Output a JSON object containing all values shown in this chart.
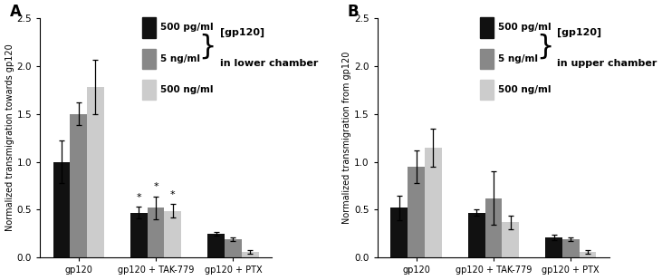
{
  "panel_A": {
    "title": "A",
    "ylabel": "Normalized transmigration towards gp120",
    "groups": [
      "gp120",
      "gp120 + TAK-779",
      "gp120 + PTX"
    ],
    "bar_values": [
      [
        1.0,
        1.5,
        1.78
      ],
      [
        0.47,
        0.52,
        0.49
      ],
      [
        0.25,
        0.19,
        0.06
      ]
    ],
    "bar_errors": [
      [
        0.22,
        0.12,
        0.28
      ],
      [
        0.06,
        0.12,
        0.07
      ],
      [
        0.02,
        0.02,
        0.02
      ]
    ],
    "ylim": [
      0,
      2.5
    ],
    "yticks": [
      0,
      0.5,
      1.0,
      1.5,
      2.0,
      2.5
    ],
    "legend_label_line1": "[gp120]",
    "legend_label_line2": "in lower chamber"
  },
  "panel_B": {
    "title": "B",
    "ylabel": "Normalized transmigration from gp120",
    "groups": [
      "gp120",
      "gp120 + TAK-779",
      "gp120 + PTX"
    ],
    "bar_values": [
      [
        0.52,
        0.95,
        1.15
      ],
      [
        0.47,
        0.62,
        0.37
      ],
      [
        0.21,
        0.19,
        0.06
      ]
    ],
    "bar_errors": [
      [
        0.13,
        0.17,
        0.2
      ],
      [
        0.03,
        0.28,
        0.07
      ],
      [
        0.03,
        0.02,
        0.02
      ]
    ],
    "ylim": [
      0,
      2.5
    ],
    "yticks": [
      0,
      0.5,
      1.0,
      1.5,
      2.0,
      2.5
    ],
    "legend_label_line1": "[gp120]",
    "legend_label_line2": "in upper chamber"
  },
  "bar_colors": [
    "#111111",
    "#888888",
    "#cccccc"
  ],
  "legend_labels": [
    "500 pg/ml",
    "5 ng/ml",
    "500 ng/ml"
  ],
  "bar_width": 0.22,
  "figsize": [
    7.31,
    3.09
  ],
  "dpi": 100,
  "background_color": "#ffffff"
}
